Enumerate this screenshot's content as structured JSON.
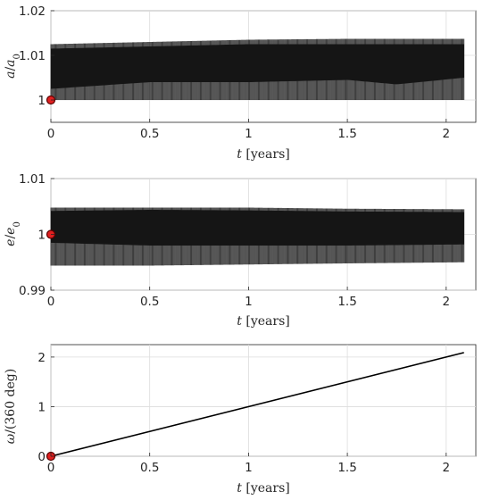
{
  "chart_data": [
    {
      "type": "line",
      "name": "a_over_a0",
      "ylabel": "a/a0",
      "ylabel_var": "a",
      "ylabel_sub": "0",
      "xlabel_var": "t",
      "xlabel_unit": "[years]",
      "xlim": [
        0,
        2.15
      ],
      "ylim": [
        0.995,
        1.02
      ],
      "xticks": [
        0,
        0.5,
        1,
        1.5,
        2
      ],
      "xtick_labels": [
        "0",
        "0.5",
        "1",
        "1.5",
        "2"
      ],
      "yticks": [
        1,
        1.01,
        1.02
      ],
      "ytick_labels": [
        "1",
        "1.01",
        "1.02"
      ],
      "grid": true,
      "x_end": 2.09,
      "band": [
        {
          "x": 0,
          "lower": 1.0,
          "upper": 1.0125
        },
        {
          "x": 0.5,
          "lower": 1.0,
          "upper": 1.013
        },
        {
          "x": 1.0,
          "lower": 1.0,
          "upper": 1.0135
        },
        {
          "x": 1.5,
          "lower": 1.0,
          "upper": 1.0137
        },
        {
          "x": 2.09,
          "lower": 1.0,
          "upper": 1.0137
        }
      ],
      "core": [
        {
          "x": 0,
          "lower": 1.0025,
          "upper": 1.0115
        },
        {
          "x": 0.5,
          "lower": 1.004,
          "upper": 1.012
        },
        {
          "x": 1.0,
          "lower": 1.004,
          "upper": 1.0125
        },
        {
          "x": 1.5,
          "lower": 1.0045,
          "upper": 1.0125
        },
        {
          "x": 1.75,
          "lower": 1.0035,
          "upper": 1.0125
        },
        {
          "x": 2.09,
          "lower": 1.005,
          "upper": 1.0125
        }
      ],
      "start_marker": {
        "x": 0,
        "y": 1
      }
    },
    {
      "type": "line",
      "name": "e_over_e0",
      "ylabel": "e/e0",
      "ylabel_var": "e",
      "ylabel_sub": "0",
      "xlabel_var": "t",
      "xlabel_unit": "[years]",
      "xlim": [
        0,
        2.15
      ],
      "ylim": [
        0.99,
        1.01
      ],
      "xticks": [
        0,
        0.5,
        1,
        1.5,
        2
      ],
      "xtick_labels": [
        "0",
        "0.5",
        "1",
        "1.5",
        "2"
      ],
      "yticks": [
        0.99,
        1,
        1.01
      ],
      "ytick_labels": [
        "0.99",
        "1",
        "1.01"
      ],
      "grid": true,
      "x_end": 2.09,
      "band": [
        {
          "x": 0,
          "lower": 0.9944,
          "upper": 1.0048
        },
        {
          "x": 0.5,
          "lower": 0.9944,
          "upper": 1.0048
        },
        {
          "x": 1.0,
          "lower": 0.9946,
          "upper": 1.0048
        },
        {
          "x": 1.5,
          "lower": 0.9948,
          "upper": 1.0046
        },
        {
          "x": 2.09,
          "lower": 0.995,
          "upper": 1.0045
        }
      ],
      "core": [
        {
          "x": 0,
          "lower": 0.9985,
          "upper": 1.0042
        },
        {
          "x": 0.5,
          "lower": 0.998,
          "upper": 1.0044
        },
        {
          "x": 1.0,
          "lower": 0.998,
          "upper": 1.0043
        },
        {
          "x": 1.5,
          "lower": 0.998,
          "upper": 1.0041
        },
        {
          "x": 2.09,
          "lower": 0.9982,
          "upper": 1.004
        }
      ],
      "start_marker": {
        "x": 0,
        "y": 1
      }
    },
    {
      "type": "line",
      "name": "omega_turns",
      "ylabel": "ω/(360 deg)",
      "ylabel_var": "ω",
      "ylabel_rest": "/(360 deg)",
      "xlabel_var": "t",
      "xlabel_unit": "[years]",
      "xlim": [
        0,
        2.15
      ],
      "ylim": [
        0,
        2.25
      ],
      "xticks": [
        0,
        0.5,
        1,
        1.5,
        2
      ],
      "xtick_labels": [
        "0",
        "0.5",
        "1",
        "1.5",
        "2"
      ],
      "yticks": [
        0,
        1,
        2
      ],
      "ytick_labels": [
        "0",
        "1",
        "2"
      ],
      "grid": true,
      "x": [
        0,
        2.09
      ],
      "y": [
        0,
        2.09
      ],
      "start_marker": {
        "x": 0,
        "y": 0
      }
    }
  ],
  "colors": {
    "axis": "#262626",
    "grid": "#dcdcdc",
    "band": "#2b2b2b",
    "core": "#151515",
    "line": "#000000",
    "marker_fill": "#e02020",
    "marker_edge": "#5a0000"
  }
}
